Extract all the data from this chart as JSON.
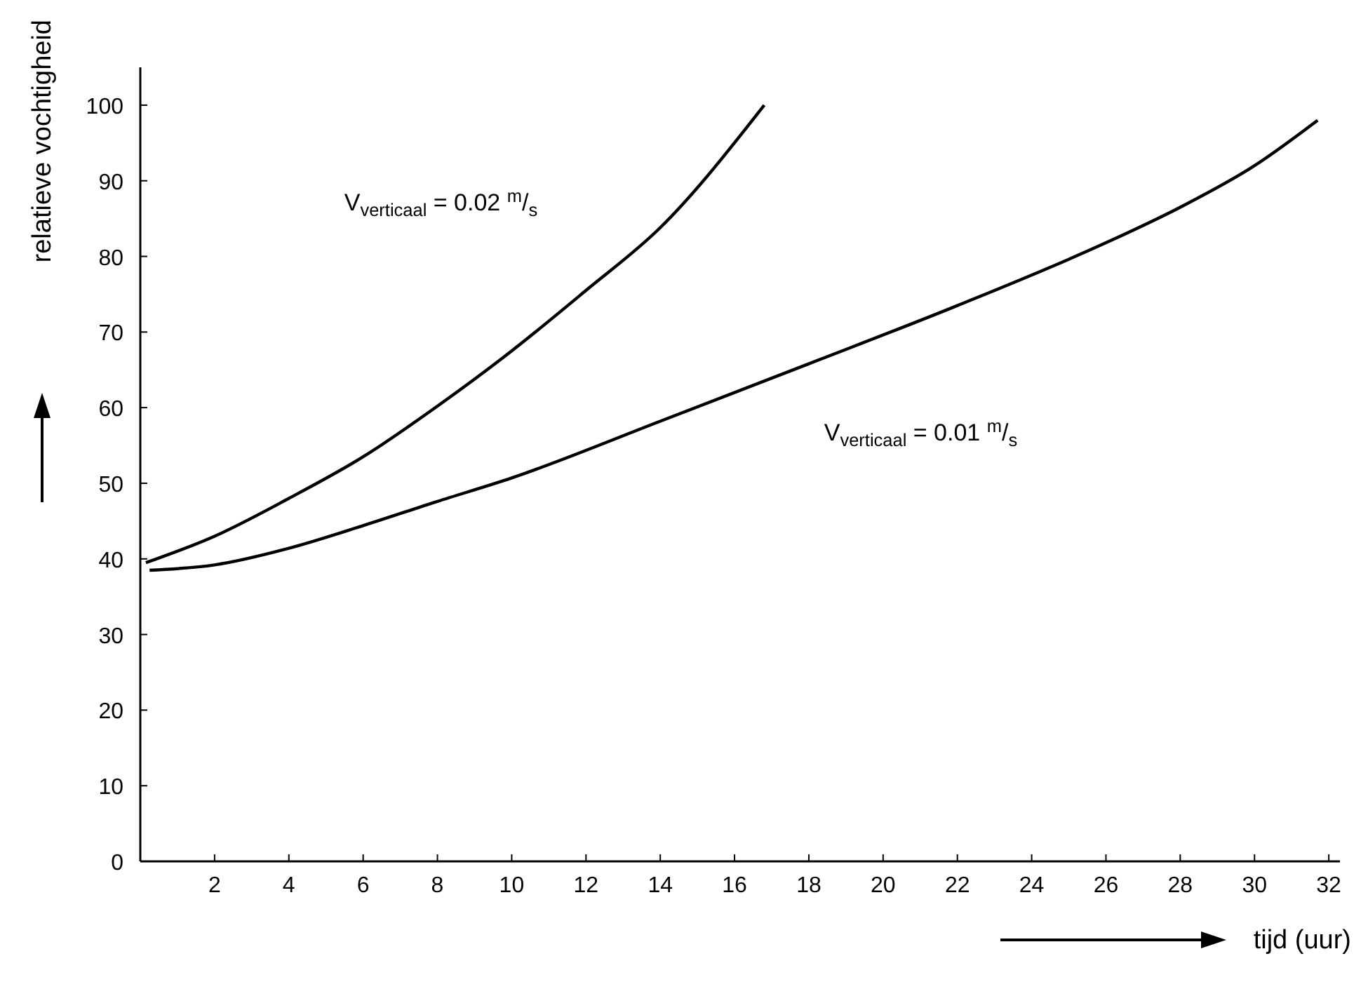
{
  "chart_data": {
    "type": "line",
    "xlabel": "tijd (uur)",
    "ylabel": "relatieve vochtigheid",
    "xlim": [
      0,
      32.3
    ],
    "ylim": [
      0,
      105
    ],
    "xticks": [
      2,
      4,
      6,
      8,
      10,
      12,
      14,
      16,
      18,
      20,
      22,
      24,
      26,
      28,
      30,
      32
    ],
    "yticks": [
      0,
      10,
      20,
      30,
      40,
      50,
      60,
      70,
      80,
      90,
      100
    ],
    "grid": false,
    "marker": "none",
    "line_style": "solid",
    "series": [
      {
        "color": "#000000",
        "x": [
          0.15,
          2,
          4,
          6,
          8,
          10,
          12,
          14,
          16.8
        ],
        "values": [
          39.5,
          43,
          48,
          53.5,
          60.2,
          67.5,
          75.5,
          83.8,
          100
        ]
      },
      {
        "color": "#000000",
        "x": [
          0.25,
          2,
          4,
          6,
          8,
          10,
          14,
          18,
          22,
          26,
          28,
          30,
          31.7
        ],
        "values": [
          38.5,
          39.2,
          41.4,
          44.4,
          47.6,
          50.7,
          58.2,
          65.8,
          73.5,
          81.8,
          86.5,
          92,
          98
        ]
      }
    ],
    "annotations": [
      "V$_{verticaal}$ = 0.02 $^{m}$/$_{s}$",
      "V$_{verticaal}$ = 0.01 $^{m}$/$_{s}$"
    ]
  }
}
